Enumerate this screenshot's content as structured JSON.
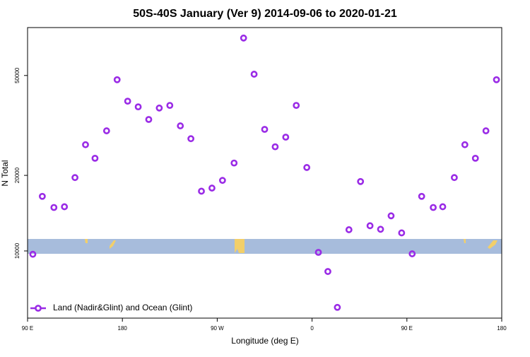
{
  "chart_data": {
    "type": "scatter",
    "title": "50S-40S January (Ver 9)   2014-09-06 to 2020-01-21",
    "x_label": "Longitude (deg E)",
    "y_label": "N Total",
    "log_y": true,
    "legend": "bottom-left",
    "xlim": [
      90,
      540
    ],
    "xticks": [
      {
        "value": 90,
        "label": "90 E"
      },
      180,
      {
        "value": 270,
        "label": "90 W"
      },
      {
        "value": 360,
        "label": "0"
      },
      {
        "value": 450,
        "label": "90 E"
      },
      {
        "value": 540,
        "label": "180"
      }
    ],
    "ylim": [
      5400,
      77600
    ],
    "yticks": [
      10000,
      20000,
      50000
    ],
    "series": [
      {
        "name": "Land (Nadir&Glint) and Ocean (Glint)",
        "color": "#9a2be6",
        "x": [
          95,
          104,
          115,
          125,
          135,
          145,
          154,
          165,
          175,
          185,
          195,
          205,
          215,
          225,
          235,
          245,
          255,
          265,
          275,
          286,
          295,
          305,
          315,
          325,
          335,
          345,
          355,
          366,
          375,
          384,
          395,
          406,
          415,
          425,
          435,
          445,
          455,
          464,
          475,
          484,
          495,
          505,
          515,
          525,
          535
        ],
        "values": [
          9700,
          16500,
          14900,
          15000,
          19600,
          26500,
          23400,
          30100,
          48100,
          39500,
          37500,
          33400,
          37100,
          38000,
          31500,
          28000,
          17300,
          17800,
          19100,
          22400,
          70500,
          50600,
          30500,
          26000,
          28400,
          38000,
          21500,
          9870,
          8280,
          5960,
          12150,
          18900,
          12600,
          12200,
          13800,
          11800,
          9740,
          16500,
          14900,
          15000,
          19600,
          26500,
          23400,
          30100,
          48100
        ]
      }
    ]
  }
}
